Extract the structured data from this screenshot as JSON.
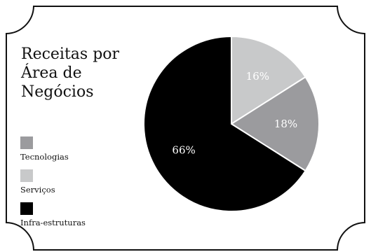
{
  "chart_data": {
    "type": "pie",
    "title_lines": [
      "Receitas por",
      "Área de",
      "Negócios"
    ],
    "slices": [
      {
        "name": "Serviços",
        "value": 16,
        "label": "16%",
        "color": "#c8c9ca",
        "label_color": "#ffffff"
      },
      {
        "name": "Tecnologias",
        "value": 18,
        "label": "18%",
        "color": "#9b9b9e",
        "label_color": "#ffffff"
      },
      {
        "name": "Infra-estruturas",
        "value": 66,
        "label": "66%",
        "color": "#000000",
        "label_color": "#ffffff"
      }
    ],
    "legend": [
      {
        "label": "Tecnologias",
        "color": "#9b9b9e"
      },
      {
        "label": "Serviços",
        "color": "#c8c9ca"
      },
      {
        "label": "Infra-estruturas",
        "color": "#000000"
      }
    ],
    "legend_placement": "left"
  }
}
